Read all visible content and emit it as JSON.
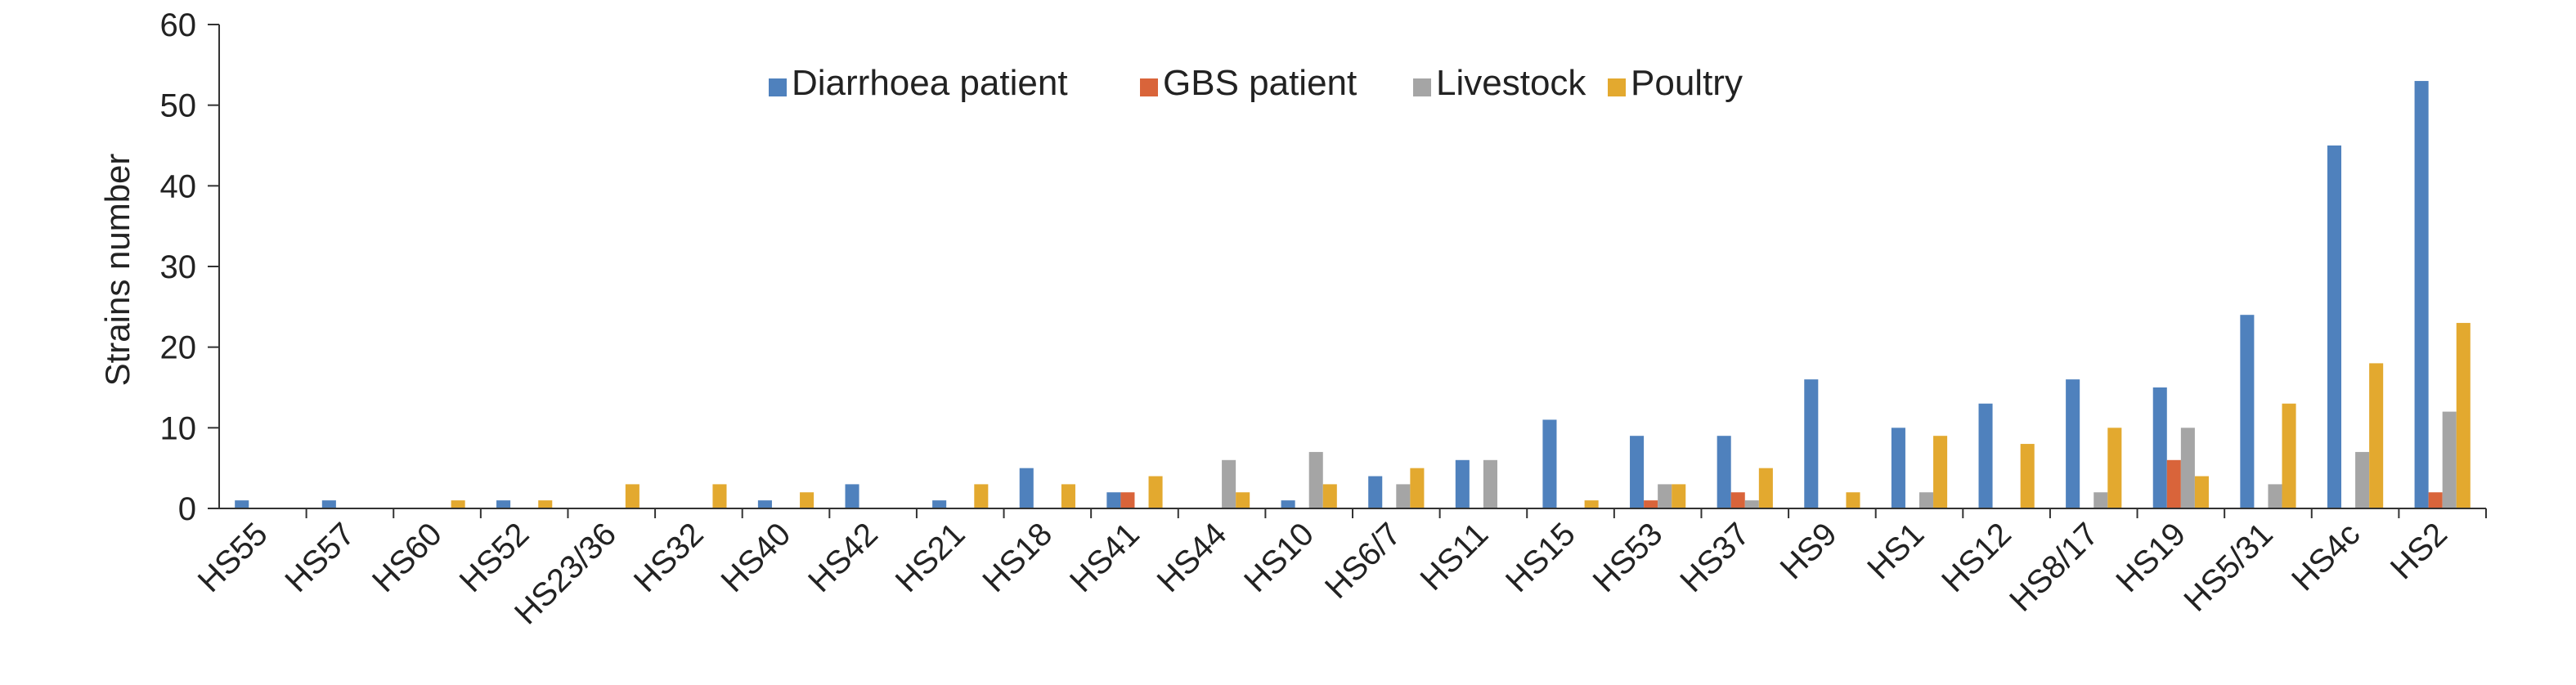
{
  "chart_data": {
    "type": "bar",
    "title": "",
    "xlabel": "",
    "ylabel": "Strains number",
    "ylim": [
      0,
      60
    ],
    "yticks": [
      "0",
      "10",
      "20",
      "30",
      "40",
      "50",
      "60"
    ],
    "legend_position": "top-center",
    "grid": false,
    "categories": [
      "HS55",
      "HS57",
      "HS60",
      "HS52",
      "HS23/36",
      "HS32",
      "HS40",
      "HS42",
      "HS21",
      "HS18",
      "HS41",
      "HS44",
      "HS10",
      "HS6/7",
      "HS11",
      "HS15",
      "HS53",
      "HS37",
      "HS9",
      "HS1",
      "HS12",
      "HS8/17",
      "HS19",
      "HS5/31",
      "HS4c",
      "HS2"
    ],
    "series": [
      {
        "name": "Diarrhoea patient",
        "color": "#4f81bd",
        "values": [
          1,
          1,
          0,
          1,
          0,
          0,
          1,
          3,
          1,
          5,
          2,
          0,
          1,
          4,
          6,
          11,
          9,
          9,
          16,
          10,
          13,
          16,
          15,
          24,
          45,
          53
        ]
      },
      {
        "name": "GBS patient",
        "color": "#d9643a",
        "values": [
          0,
          0,
          0,
          0,
          0,
          0,
          0,
          0,
          0,
          0,
          2,
          0,
          0,
          0,
          0,
          0,
          1,
          2,
          0,
          0,
          0,
          0,
          6,
          0,
          0,
          2
        ]
      },
      {
        "name": "Livestock",
        "color": "#a5a5a5",
        "values": [
          0,
          0,
          0,
          0,
          0,
          0,
          0,
          0,
          0,
          0,
          0,
          6,
          7,
          3,
          6,
          0,
          3,
          1,
          0,
          2,
          0,
          2,
          10,
          3,
          7,
          12
        ]
      },
      {
        "name": "Poultry",
        "color": "#e3a92f",
        "values": [
          0,
          0,
          1,
          1,
          3,
          3,
          2,
          0,
          3,
          3,
          4,
          2,
          3,
          5,
          0,
          1,
          3,
          5,
          2,
          9,
          8,
          10,
          4,
          13,
          18,
          23
        ]
      }
    ]
  }
}
